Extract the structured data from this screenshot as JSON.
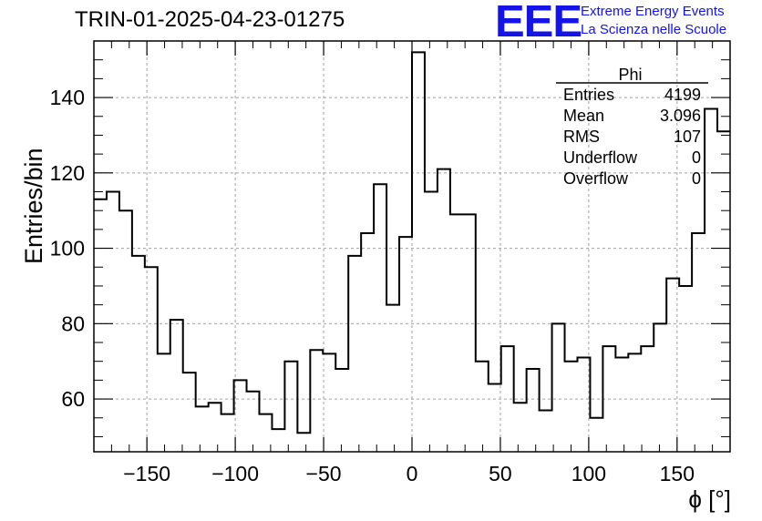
{
  "header": {
    "title": "TRIN-01-2025-04-23-01275",
    "logo_text": "EEE",
    "logo_line1": "Extreme Energy Events",
    "logo_line2": "La Scienza nelle Scuole"
  },
  "colors": {
    "logo": "#1414e6",
    "hist_line": "#000000",
    "grid": "#a0a0a0"
  },
  "stats_box": {
    "title": "Phi",
    "rows": [
      {
        "label": "Entries",
        "value": "4199"
      },
      {
        "label": "Mean",
        "value": "3.096"
      },
      {
        "label": "RMS",
        "value": "107"
      },
      {
        "label": "Underflow",
        "value": "0"
      },
      {
        "label": "Overflow",
        "value": "0"
      }
    ]
  },
  "chart_data": {
    "type": "histogram",
    "title": "TRIN-01-2025-04-23-01275",
    "xlabel": "ϕ [°]",
    "ylabel": "Entries/bin",
    "xlim": [
      -180,
      180
    ],
    "ylim": [
      46,
      155
    ],
    "bin_width": 7.2,
    "grid": true,
    "x_ticks": [
      -150,
      -100,
      -50,
      0,
      50,
      100,
      150
    ],
    "y_ticks": [
      60,
      80,
      100,
      120,
      140
    ],
    "values": [
      113,
      115,
      110,
      98,
      95,
      72,
      81,
      67,
      58,
      59,
      56,
      65,
      62,
      56,
      52,
      70,
      51,
      73,
      72,
      68,
      98,
      104,
      117,
      85,
      103,
      152,
      115,
      121,
      109,
      109,
      70,
      64,
      74,
      59,
      68,
      57,
      80,
      70,
      71,
      55,
      74,
      71,
      72,
      74,
      80,
      92,
      90,
      104,
      137,
      131
    ]
  }
}
